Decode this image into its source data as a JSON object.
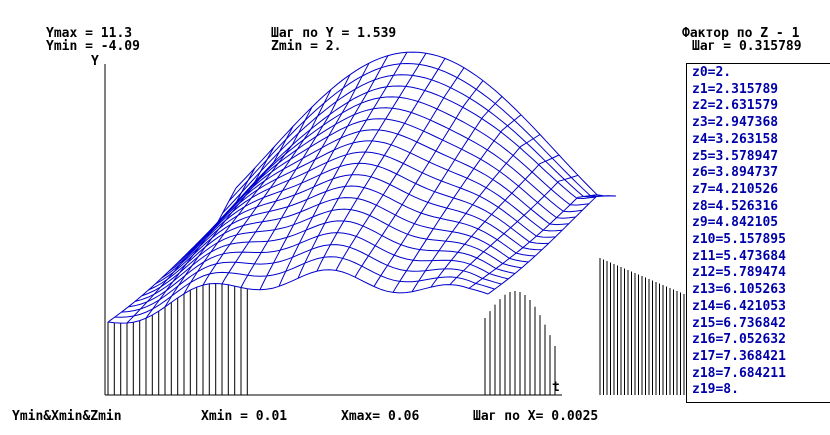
{
  "header": {
    "ymax": "Ymax = 11.3",
    "ymin": "Ymin = -4.09",
    "step_y": "Шаг по Y = 1.539",
    "zmin": "Zmin = 2.",
    "z_factor": "Фактор по Z - 1",
    "z_step": "Шаг = 0.315789"
  },
  "axes": {
    "y_label": "Y",
    "x_label": "t"
  },
  "footer": {
    "origin": "Ymin&Xmin&Zmin",
    "xmin": "Xmin = 0.01",
    "xmax": "Xmax= 0.06",
    "step_x": "Шаг по X= 0.0025"
  },
  "z_values": [
    "z0=2.",
    "z1=2.315789",
    "z2=2.631579",
    "z3=2.947368",
    "z4=3.263158",
    "z5=3.578947",
    "z6=3.894737",
    "z7=4.210526",
    "z8=4.526316",
    "z9=4.842105",
    "z10=5.157895",
    "z11=5.473684",
    "z12=5.789474",
    "z13=6.105263",
    "z14=6.421053",
    "z15=6.736842",
    "z16=7.052632",
    "z17=7.368421",
    "z18=7.684211",
    "z19=8."
  ],
  "colors": {
    "mesh": "#0000cc",
    "axes": "#000000",
    "list_text": "#0000aa"
  }
}
